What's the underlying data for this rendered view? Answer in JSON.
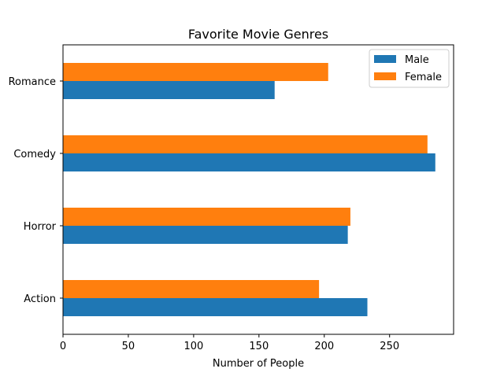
{
  "chart_data": {
    "type": "bar",
    "orientation": "horizontal",
    "title": "Favorite Movie Genres",
    "xlabel": "Number of People",
    "ylabel": "",
    "categories": [
      "Action",
      "Horror",
      "Comedy",
      "Romance"
    ],
    "series": [
      {
        "name": "Male",
        "values": [
          233,
          218,
          285,
          162
        ],
        "color": "#1f77b4"
      },
      {
        "name": "Female",
        "values": [
          196,
          220,
          279,
          203
        ],
        "color": "#ff7f0e"
      }
    ],
    "xlim": [
      0,
      299
    ],
    "xticks": [
      0,
      50,
      100,
      150,
      200,
      250
    ],
    "grid": false,
    "legend_position": "top-right"
  }
}
